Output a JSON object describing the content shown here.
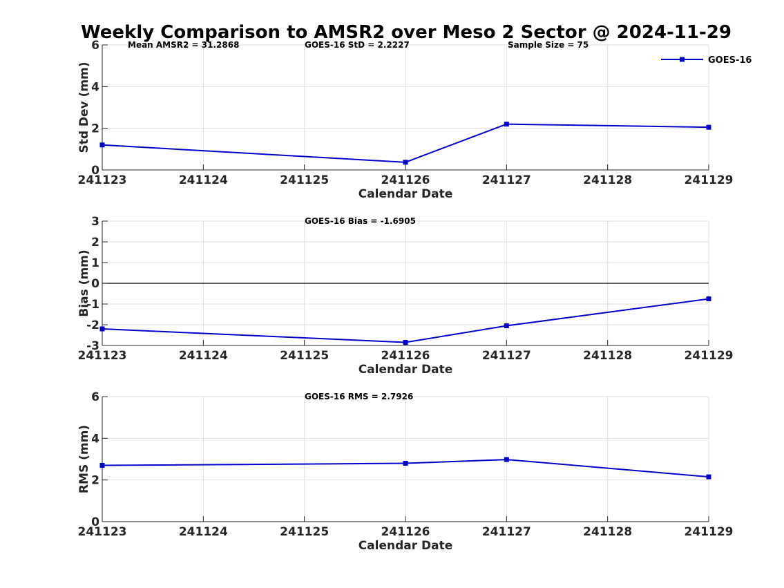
{
  "figure_title": "Weekly Comparison to AMSR2 over Meso 2 Sector @ 2024-11-29",
  "chart_data": [
    {
      "type": "line",
      "ylabel": "Std Dev (mm)",
      "xlabel": "Calendar Date",
      "categories": [
        "241123",
        "241124",
        "241125",
        "241126",
        "241127",
        "241128",
        "241129"
      ],
      "xlim": [
        0,
        6
      ],
      "ylim": [
        0,
        6
      ],
      "yticks": [
        0,
        2,
        4,
        6
      ],
      "grid": true,
      "annotations": [
        "Mean AMSR2 = 31.2868",
        "GOES-16 StD = 2.2227",
        "Sample Size = 75"
      ],
      "legend": {
        "placement": "top-right",
        "entries": [
          "GOES-16"
        ]
      },
      "zero_line": false,
      "series": [
        {
          "name": "GOES-16",
          "color": "#0000cc",
          "points": [
            [
              0,
              1.2
            ],
            [
              3,
              0.37
            ],
            [
              4,
              2.2
            ],
            [
              6,
              2.05
            ]
          ]
        }
      ]
    },
    {
      "type": "line",
      "ylabel": "Bias (mm)",
      "xlabel": "Calendar Date",
      "categories": [
        "241123",
        "241124",
        "241125",
        "241126",
        "241127",
        "241128",
        "241129"
      ],
      "xlim": [
        0,
        6
      ],
      "ylim": [
        -3,
        3
      ],
      "yticks": [
        -3,
        -2,
        -1,
        0,
        1,
        2,
        3
      ],
      "grid": true,
      "annotations": [
        "GOES-16 Bias  = -1.6905"
      ],
      "zero_line": true,
      "series": [
        {
          "name": "GOES-16",
          "color": "#0000cc",
          "points": [
            [
              0,
              -2.2
            ],
            [
              3,
              -2.85
            ],
            [
              4,
              -2.05
            ],
            [
              6,
              -0.75
            ]
          ]
        }
      ]
    },
    {
      "type": "line",
      "ylabel": "RMS (mm)",
      "xlabel": "Calendar Date",
      "categories": [
        "241123",
        "241124",
        "241125",
        "241126",
        "241127",
        "241128",
        "241129"
      ],
      "xlim": [
        0,
        6
      ],
      "ylim": [
        0,
        6
      ],
      "yticks": [
        0,
        2,
        4,
        6
      ],
      "grid": true,
      "annotations": [
        "GOES-16 RMS = 2.7926"
      ],
      "zero_line": false,
      "series": [
        {
          "name": "GOES-16",
          "color": "#0000cc",
          "points": [
            [
              0,
              2.7
            ],
            [
              3,
              2.8
            ],
            [
              4,
              2.98
            ],
            [
              6,
              2.15
            ]
          ]
        }
      ]
    }
  ]
}
